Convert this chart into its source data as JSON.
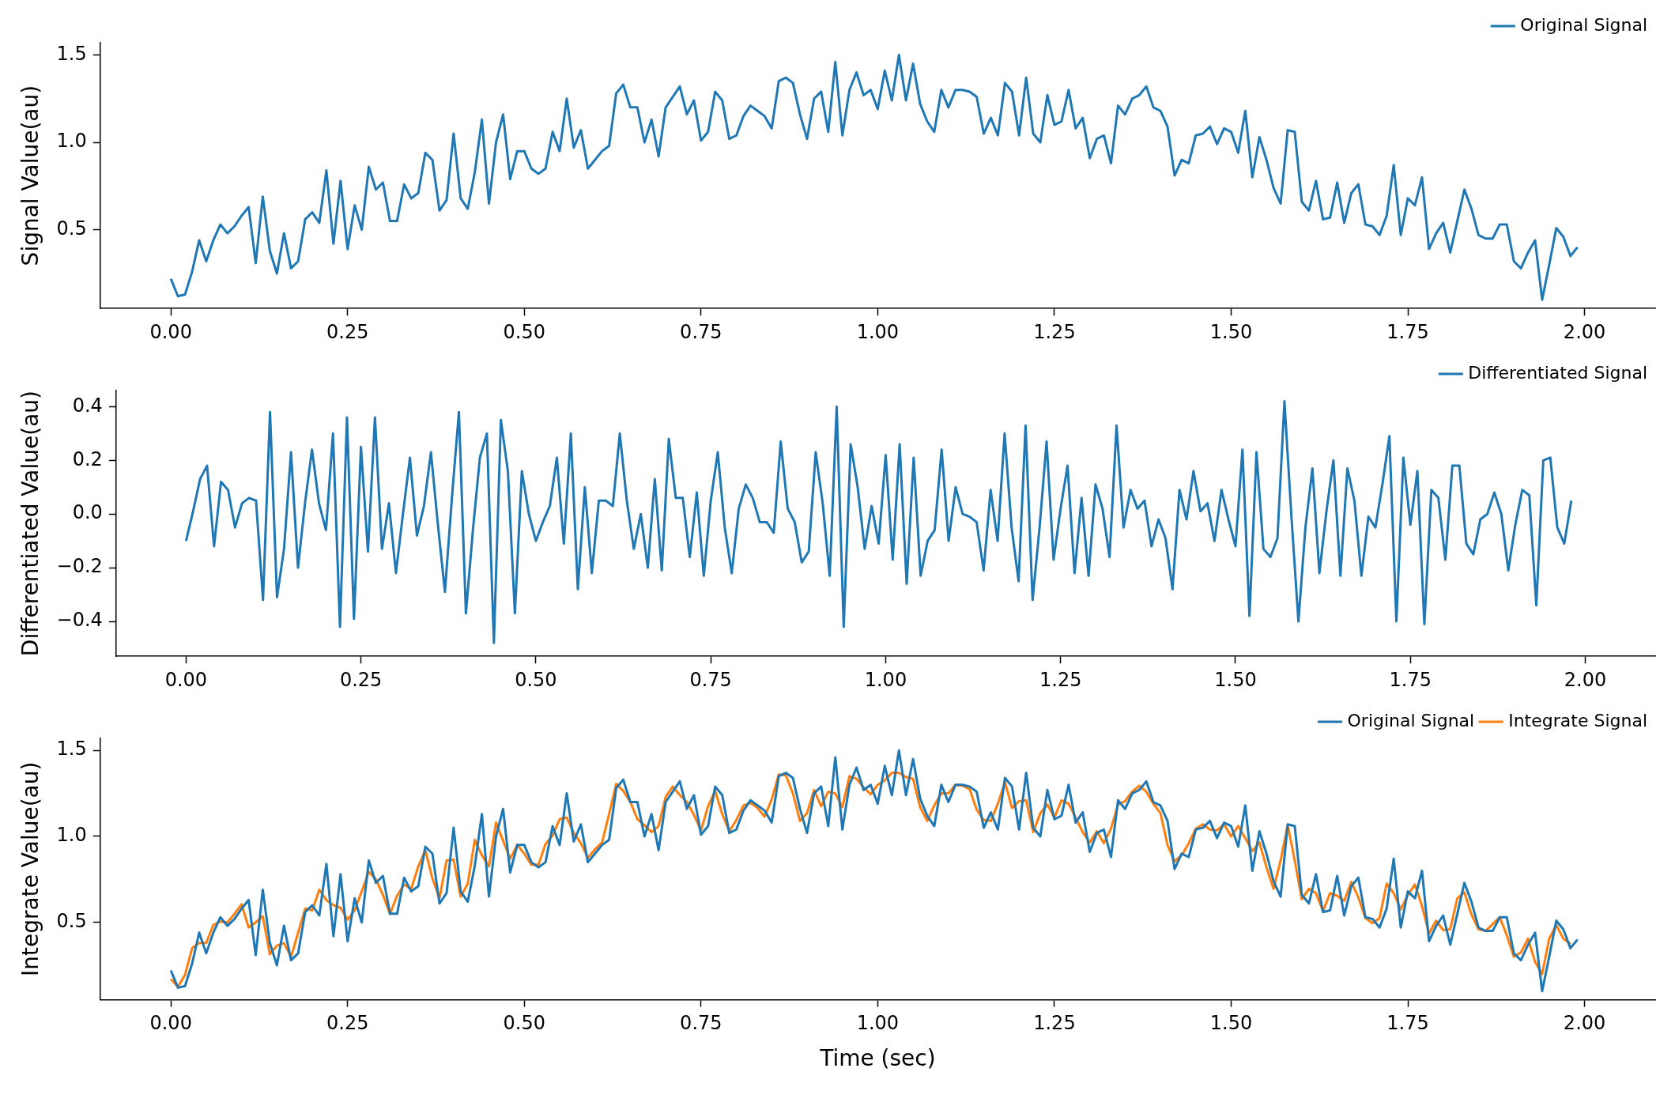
{
  "chart_data": [
    {
      "type": "line",
      "ylabel": "Signal Value(au)",
      "xlim": [
        -0.1,
        2.1
      ],
      "ylim": [
        0.05,
        1.57
      ],
      "xticks": [
        {
          "value": 0,
          "label": "0.00"
        },
        {
          "value": 0.25,
          "label": "0.25"
        },
        {
          "value": 0.5,
          "label": "0.50"
        },
        {
          "value": 0.75,
          "label": "0.75"
        },
        {
          "value": 1,
          "label": "1.00"
        },
        {
          "value": 1.25,
          "label": "1.25"
        },
        {
          "value": 1.5,
          "label": "1.50"
        },
        {
          "value": 1.75,
          "label": "1.75"
        },
        {
          "value": 2,
          "label": "2.00"
        }
      ],
      "yticks": [
        {
          "value": 0.5,
          "label": "0.5"
        },
        {
          "value": 1,
          "label": "1.0"
        },
        {
          "value": 1.5,
          "label": "1.5"
        }
      ],
      "legend": "top right",
      "grid": false,
      "marker": "none",
      "line_style": "solid",
      "x": [
        0,
        0.01,
        0.02,
        0.03,
        0.04,
        0.05,
        0.06,
        0.07,
        0.08,
        0.09,
        0.1,
        0.11,
        0.12,
        0.13,
        0.14,
        0.15,
        0.16,
        0.17,
        0.18,
        0.19,
        0.2,
        0.21,
        0.22,
        0.23,
        0.24,
        0.25,
        0.26,
        0.27,
        0.28,
        0.29,
        0.3,
        0.31,
        0.32,
        0.33,
        0.34,
        0.35,
        0.36,
        0.37,
        0.38,
        0.39,
        0.4,
        0.41,
        0.42,
        0.43,
        0.44,
        0.45,
        0.46,
        0.47,
        0.48,
        0.49,
        0.5,
        0.51,
        0.52,
        0.53,
        0.54,
        0.55,
        0.56,
        0.57,
        0.58,
        0.59,
        0.6,
        0.61,
        0.62,
        0.63,
        0.64,
        0.65,
        0.66,
        0.67,
        0.68,
        0.69,
        0.7,
        0.71,
        0.72,
        0.73,
        0.74,
        0.75,
        0.76,
        0.77,
        0.78,
        0.79,
        0.8,
        0.81,
        0.82,
        0.83,
        0.84,
        0.85,
        0.86,
        0.87,
        0.88,
        0.89,
        0.9,
        0.91,
        0.92,
        0.93,
        0.94,
        0.95,
        0.96,
        0.97,
        0.98,
        0.99,
        1,
        1.01,
        1.02,
        1.03,
        1.04,
        1.05,
        1.06,
        1.07,
        1.08,
        1.09,
        1.1,
        1.11,
        1.12,
        1.13,
        1.14,
        1.15,
        1.16,
        1.17,
        1.18,
        1.19,
        1.2,
        1.21,
        1.22,
        1.23,
        1.24,
        1.25,
        1.26,
        1.27,
        1.28,
        1.29,
        1.3,
        1.31,
        1.32,
        1.33,
        1.34,
        1.35,
        1.36,
        1.37,
        1.38,
        1.39,
        1.4,
        1.41,
        1.42,
        1.43,
        1.44,
        1.45,
        1.46,
        1.47,
        1.48,
        1.49,
        1.5,
        1.51,
        1.52,
        1.53,
        1.54,
        1.55,
        1.56,
        1.57,
        1.58,
        1.59,
        1.6,
        1.61,
        1.62,
        1.63,
        1.64,
        1.65,
        1.66,
        1.67,
        1.68,
        1.69,
        1.7,
        1.71,
        1.72,
        1.73,
        1.74,
        1.75,
        1.76,
        1.77,
        1.78,
        1.79,
        1.8,
        1.81,
        1.82,
        1.83,
        1.84,
        1.85,
        1.86,
        1.87,
        1.88,
        1.89,
        1.9,
        1.91,
        1.92,
        1.93,
        1.94,
        1.95,
        1.96,
        1.97,
        1.98,
        1.99
      ],
      "series": [
        {
          "name": "Original Signal",
          "color": "#1f77b4",
          "values": [
            0.22,
            0.12,
            0.13,
            0.26,
            0.44,
            0.32,
            0.44,
            0.53,
            0.48,
            0.52,
            0.58,
            0.63,
            0.31,
            0.69,
            0.38,
            0.25,
            0.48,
            0.28,
            0.32,
            0.56,
            0.6,
            0.54,
            0.84,
            0.42,
            0.78,
            0.39,
            0.64,
            0.5,
            0.86,
            0.73,
            0.77,
            0.55,
            0.55,
            0.76,
            0.68,
            0.71,
            0.94,
            0.9,
            0.61,
            0.67,
            1.05,
            0.68,
            0.62,
            0.83,
            1.13,
            0.65,
            1.0,
            1.16,
            0.79,
            0.95,
            0.95,
            0.85,
            0.82,
            0.85,
            1.06,
            0.95,
            1.25,
            0.97,
            1.07,
            0.85,
            0.9,
            0.95,
            0.98,
            1.28,
            1.33,
            1.2,
            1.2,
            1.0,
            1.13,
            0.92,
            1.2,
            1.26,
            1.32,
            1.16,
            1.24,
            1.01,
            1.06,
            1.29,
            1.24,
            1.02,
            1.04,
            1.15,
            1.21,
            1.18,
            1.15,
            1.08,
            1.35,
            1.37,
            1.34,
            1.16,
            1.02,
            1.25,
            1.29,
            1.06,
            1.46,
            1.04,
            1.3,
            1.4,
            1.27,
            1.3,
            1.19,
            1.41,
            1.24,
            1.5,
            1.24,
            1.45,
            1.22,
            1.12,
            1.06,
            1.3,
            1.2,
            1.3,
            1.3,
            1.29,
            1.26,
            1.05,
            1.14,
            1.04,
            1.34,
            1.29,
            1.04,
            1.37,
            1.05,
            1.0,
            1.27,
            1.1,
            1.12,
            1.3,
            1.08,
            1.14,
            0.91,
            1.02,
            1.04,
            0.88,
            1.21,
            1.16,
            1.25,
            1.27,
            1.32,
            1.2,
            1.18,
            1.09,
            0.81,
            0.9,
            0.88,
            1.04,
            1.05,
            1.09,
            0.99,
            1.08,
            1.06,
            0.94,
            1.18,
            0.8,
            1.03,
            0.9,
            0.74,
            0.65,
            1.07,
            1.06,
            0.66,
            0.61,
            0.78,
            0.56,
            0.57,
            0.77,
            0.54,
            0.71,
            0.76,
            0.53,
            0.52,
            0.47,
            0.58,
            0.87,
            0.47,
            0.68,
            0.64,
            0.8,
            0.39,
            0.48,
            0.54,
            0.37,
            0.55,
            0.73,
            0.62,
            0.47,
            0.45,
            0.45,
            0.53,
            0.53,
            0.32,
            0.28,
            0.37,
            0.44,
            0.1,
            0.3,
            0.51,
            0.46,
            0.35,
            0.4
          ]
        }
      ]
    },
    {
      "type": "line",
      "ylabel": "Differentiated Value(au)",
      "xlim": [
        -0.1,
        2.1
      ],
      "ylim": [
        -0.53,
        0.46
      ],
      "xticks": [
        {
          "value": 0,
          "label": "0.00"
        },
        {
          "value": 0.25,
          "label": "0.25"
        },
        {
          "value": 0.5,
          "label": "0.50"
        },
        {
          "value": 0.75,
          "label": "0.75"
        },
        {
          "value": 1,
          "label": "1.00"
        },
        {
          "value": 1.25,
          "label": "1.25"
        },
        {
          "value": 1.5,
          "label": "1.50"
        },
        {
          "value": 1.75,
          "label": "1.75"
        },
        {
          "value": 2,
          "label": "2.00"
        }
      ],
      "yticks": [
        {
          "value": -0.4,
          "label": "−0.4"
        },
        {
          "value": -0.2,
          "label": "−0.2"
        },
        {
          "value": 0,
          "label": "0.0"
        },
        {
          "value": 0.2,
          "label": "0.2"
        },
        {
          "value": 0.4,
          "label": "0.4"
        }
      ],
      "legend": "top right",
      "grid": false,
      "marker": "none",
      "line_style": "solid",
      "x": [
        0,
        0.01,
        0.02,
        0.03,
        0.04,
        0.05,
        0.06,
        0.07,
        0.08,
        0.09,
        0.1,
        0.11,
        0.12,
        0.13,
        0.14,
        0.15,
        0.16,
        0.17,
        0.18,
        0.19,
        0.2,
        0.21,
        0.22,
        0.23,
        0.24,
        0.25,
        0.26,
        0.27,
        0.28,
        0.29,
        0.3,
        0.31,
        0.32,
        0.33,
        0.34,
        0.35,
        0.36,
        0.37,
        0.38,
        0.39,
        0.4,
        0.41,
        0.42,
        0.43,
        0.44,
        0.45,
        0.46,
        0.47,
        0.48,
        0.49,
        0.5,
        0.51,
        0.52,
        0.53,
        0.54,
        0.55,
        0.56,
        0.57,
        0.58,
        0.59,
        0.6,
        0.61,
        0.62,
        0.63,
        0.64,
        0.65,
        0.66,
        0.67,
        0.68,
        0.69,
        0.7,
        0.71,
        0.72,
        0.73,
        0.74,
        0.75,
        0.76,
        0.77,
        0.78,
        0.79,
        0.8,
        0.81,
        0.82,
        0.83,
        0.84,
        0.85,
        0.86,
        0.87,
        0.88,
        0.89,
        0.9,
        0.91,
        0.92,
        0.93,
        0.94,
        0.95,
        0.96,
        0.97,
        0.98,
        0.99,
        1,
        1.01,
        1.02,
        1.03,
        1.04,
        1.05,
        1.06,
        1.07,
        1.08,
        1.09,
        1.1,
        1.11,
        1.12,
        1.13,
        1.14,
        1.15,
        1.16,
        1.17,
        1.18,
        1.19,
        1.2,
        1.21,
        1.22,
        1.23,
        1.24,
        1.25,
        1.26,
        1.27,
        1.28,
        1.29,
        1.3,
        1.31,
        1.32,
        1.33,
        1.34,
        1.35,
        1.36,
        1.37,
        1.38,
        1.39,
        1.4,
        1.41,
        1.42,
        1.43,
        1.44,
        1.45,
        1.46,
        1.47,
        1.48,
        1.49,
        1.5,
        1.51,
        1.52,
        1.53,
        1.54,
        1.55,
        1.56,
        1.57,
        1.58,
        1.59,
        1.6,
        1.61,
        1.62,
        1.63,
        1.64,
        1.65,
        1.66,
        1.67,
        1.68,
        1.69,
        1.7,
        1.71,
        1.72,
        1.73,
        1.74,
        1.75,
        1.76,
        1.77,
        1.78,
        1.79,
        1.8,
        1.81,
        1.82,
        1.83,
        1.84,
        1.85,
        1.86,
        1.87,
        1.88,
        1.89,
        1.9,
        1.91,
        1.92,
        1.93,
        1.94,
        1.95,
        1.96,
        1.97,
        1.98
      ],
      "series": [
        {
          "name": "Differentiated Signal",
          "color": "#1f77b4",
          "values": [
            -0.1,
            0.01,
            0.13,
            0.18,
            -0.12,
            0.12,
            0.09,
            -0.05,
            0.04,
            0.06,
            0.05,
            -0.32,
            0.38,
            -0.31,
            -0.13,
            0.23,
            -0.2,
            0.04,
            0.24,
            0.04,
            -0.06,
            0.3,
            -0.42,
            0.36,
            -0.39,
            0.25,
            -0.14,
            0.36,
            -0.13,
            0.04,
            -0.22,
            0,
            0.21,
            -0.08,
            0.03,
            0.23,
            -0.04,
            -0.29,
            0.06,
            0.38,
            -0.37,
            -0.06,
            0.21,
            0.3,
            -0.48,
            0.35,
            0.16,
            -0.37,
            0.16,
            0,
            -0.1,
            -0.03,
            0.03,
            0.21,
            -0.11,
            0.3,
            -0.28,
            0.1,
            -0.22,
            0.05,
            0.05,
            0.03,
            0.3,
            0.05,
            -0.13,
            0,
            -0.2,
            0.13,
            -0.21,
            0.28,
            0.06,
            0.06,
            -0.16,
            0.08,
            -0.23,
            0.05,
            0.23,
            -0.05,
            -0.22,
            0.02,
            0.11,
            0.06,
            -0.03,
            -0.03,
            -0.07,
            0.27,
            0.02,
            -0.03,
            -0.18,
            -0.14,
            0.23,
            0.04,
            -0.23,
            0.4,
            -0.42,
            0.26,
            0.1,
            -0.13,
            0.03,
            -0.11,
            0.22,
            -0.17,
            0.26,
            -0.26,
            0.21,
            -0.23,
            -0.1,
            -0.06,
            0.24,
            -0.1,
            0.1,
            0,
            -0.01,
            -0.03,
            -0.21,
            0.09,
            -0.1,
            0.3,
            -0.05,
            -0.25,
            0.33,
            -0.32,
            -0.05,
            0.27,
            -0.17,
            0.02,
            0.18,
            -0.22,
            0.06,
            -0.23,
            0.11,
            0.02,
            -0.16,
            0.33,
            -0.05,
            0.09,
            0.02,
            0.05,
            -0.12,
            -0.02,
            -0.09,
            -0.28,
            0.09,
            -0.02,
            0.16,
            0.01,
            0.04,
            -0.1,
            0.09,
            -0.02,
            -0.12,
            0.24,
            -0.38,
            0.23,
            -0.13,
            -0.16,
            -0.09,
            0.42,
            -0.01,
            -0.4,
            -0.05,
            0.17,
            -0.22,
            0.01,
            0.2,
            -0.23,
            0.17,
            0.05,
            -0.23,
            -0.01,
            -0.05,
            0.11,
            0.29,
            -0.4,
            0.21,
            -0.04,
            0.16,
            -0.41,
            0.09,
            0.06,
            -0.17,
            0.18,
            0.18,
            -0.11,
            -0.15,
            -0.02,
            0,
            0.08,
            0,
            -0.21,
            -0.04,
            0.09,
            0.07,
            -0.34,
            0.2,
            0.21,
            -0.05,
            -0.11,
            0.05
          ]
        }
      ]
    },
    {
      "type": "line",
      "xlabel": "Time (sec)",
      "ylabel": "Integrate Value(au)",
      "xlim": [
        -0.1,
        2.1
      ],
      "ylim": [
        0.05,
        1.57
      ],
      "xticks": [
        {
          "value": 0,
          "label": "0.00"
        },
        {
          "value": 0.25,
          "label": "0.25"
        },
        {
          "value": 0.5,
          "label": "0.50"
        },
        {
          "value": 0.75,
          "label": "0.75"
        },
        {
          "value": 1,
          "label": "1.00"
        },
        {
          "value": 1.25,
          "label": "1.25"
        },
        {
          "value": 1.5,
          "label": "1.50"
        },
        {
          "value": 1.75,
          "label": "1.75"
        },
        {
          "value": 2,
          "label": "2.00"
        }
      ],
      "yticks": [
        {
          "value": 0.5,
          "label": "0.5"
        },
        {
          "value": 1,
          "label": "1.0"
        },
        {
          "value": 1.5,
          "label": "1.5"
        }
      ],
      "legend": "top right",
      "grid": false,
      "marker": "none",
      "line_style": "solid",
      "x": [
        0,
        0.01,
        0.02,
        0.03,
        0.04,
        0.05,
        0.06,
        0.07,
        0.08,
        0.09,
        0.1,
        0.11,
        0.12,
        0.13,
        0.14,
        0.15,
        0.16,
        0.17,
        0.18,
        0.19,
        0.2,
        0.21,
        0.22,
        0.23,
        0.24,
        0.25,
        0.26,
        0.27,
        0.28,
        0.29,
        0.3,
        0.31,
        0.32,
        0.33,
        0.34,
        0.35,
        0.36,
        0.37,
        0.38,
        0.39,
        0.4,
        0.41,
        0.42,
        0.43,
        0.44,
        0.45,
        0.46,
        0.47,
        0.48,
        0.49,
        0.5,
        0.51,
        0.52,
        0.53,
        0.54,
        0.55,
        0.56,
        0.57,
        0.58,
        0.59,
        0.6,
        0.61,
        0.62,
        0.63,
        0.64,
        0.65,
        0.66,
        0.67,
        0.68,
        0.69,
        0.7,
        0.71,
        0.72,
        0.73,
        0.74,
        0.75,
        0.76,
        0.77,
        0.78,
        0.79,
        0.8,
        0.81,
        0.82,
        0.83,
        0.84,
        0.85,
        0.86,
        0.87,
        0.88,
        0.89,
        0.9,
        0.91,
        0.92,
        0.93,
        0.94,
        0.95,
        0.96,
        0.97,
        0.98,
        0.99,
        1,
        1.01,
        1.02,
        1.03,
        1.04,
        1.05,
        1.06,
        1.07,
        1.08,
        1.09,
        1.1,
        1.11,
        1.12,
        1.13,
        1.14,
        1.15,
        1.16,
        1.17,
        1.18,
        1.19,
        1.2,
        1.21,
        1.22,
        1.23,
        1.24,
        1.25,
        1.26,
        1.27,
        1.28,
        1.29,
        1.3,
        1.31,
        1.32,
        1.33,
        1.34,
        1.35,
        1.36,
        1.37,
        1.38,
        1.39,
        1.4,
        1.41,
        1.42,
        1.43,
        1.44,
        1.45,
        1.46,
        1.47,
        1.48,
        1.49,
        1.5,
        1.51,
        1.52,
        1.53,
        1.54,
        1.55,
        1.56,
        1.57,
        1.58,
        1.59,
        1.6,
        1.61,
        1.62,
        1.63,
        1.64,
        1.65,
        1.66,
        1.67,
        1.68,
        1.69,
        1.7,
        1.71,
        1.72,
        1.73,
        1.74,
        1.75,
        1.76,
        1.77,
        1.78,
        1.79,
        1.8,
        1.81,
        1.82,
        1.83,
        1.84,
        1.85,
        1.86,
        1.87,
        1.88,
        1.89,
        1.9,
        1.91,
        1.92,
        1.93,
        1.94,
        1.95,
        1.96,
        1.97,
        1.98,
        1.99
      ],
      "series": [
        {
          "name": "Original Signal",
          "color": "#1f77b4",
          "values": [
            0.22,
            0.12,
            0.13,
            0.26,
            0.44,
            0.32,
            0.44,
            0.53,
            0.48,
            0.52,
            0.58,
            0.63,
            0.31,
            0.69,
            0.38,
            0.25,
            0.48,
            0.28,
            0.32,
            0.56,
            0.6,
            0.54,
            0.84,
            0.42,
            0.78,
            0.39,
            0.64,
            0.5,
            0.86,
            0.73,
            0.77,
            0.55,
            0.55,
            0.76,
            0.68,
            0.71,
            0.94,
            0.9,
            0.61,
            0.67,
            1.05,
            0.68,
            0.62,
            0.83,
            1.13,
            0.65,
            1.0,
            1.16,
            0.79,
            0.95,
            0.95,
            0.85,
            0.82,
            0.85,
            1.06,
            0.95,
            1.25,
            0.97,
            1.07,
            0.85,
            0.9,
            0.95,
            0.98,
            1.28,
            1.33,
            1.2,
            1.2,
            1.0,
            1.13,
            0.92,
            1.2,
            1.26,
            1.32,
            1.16,
            1.24,
            1.01,
            1.06,
            1.29,
            1.24,
            1.02,
            1.04,
            1.15,
            1.21,
            1.18,
            1.15,
            1.08,
            1.35,
            1.37,
            1.34,
            1.16,
            1.02,
            1.25,
            1.29,
            1.06,
            1.46,
            1.04,
            1.3,
            1.4,
            1.27,
            1.3,
            1.19,
            1.41,
            1.24,
            1.5,
            1.24,
            1.45,
            1.22,
            1.12,
            1.06,
            1.3,
            1.2,
            1.3,
            1.3,
            1.29,
            1.26,
            1.05,
            1.14,
            1.04,
            1.34,
            1.29,
            1.04,
            1.37,
            1.05,
            1.0,
            1.27,
            1.1,
            1.12,
            1.3,
            1.08,
            1.14,
            0.91,
            1.02,
            1.04,
            0.88,
            1.21,
            1.16,
            1.25,
            1.27,
            1.32,
            1.2,
            1.18,
            1.09,
            0.81,
            0.9,
            0.88,
            1.04,
            1.05,
            1.09,
            0.99,
            1.08,
            1.06,
            0.94,
            1.18,
            0.8,
            1.03,
            0.9,
            0.74,
            0.65,
            1.07,
            1.06,
            0.66,
            0.61,
            0.78,
            0.56,
            0.57,
            0.77,
            0.54,
            0.71,
            0.76,
            0.53,
            0.52,
            0.47,
            0.58,
            0.87,
            0.47,
            0.68,
            0.64,
            0.8,
            0.39,
            0.48,
            0.54,
            0.37,
            0.55,
            0.73,
            0.62,
            0.47,
            0.45,
            0.45,
            0.53,
            0.53,
            0.32,
            0.28,
            0.37,
            0.44,
            0.1,
            0.3,
            0.51,
            0.46,
            0.35,
            0.4
          ]
        },
        {
          "name": "Integrate Signal",
          "color": "#ff7f0e",
          "values": [
            0.17,
            0.125,
            0.195,
            0.35,
            0.38,
            0.38,
            0.485,
            0.505,
            0.5,
            0.55,
            0.605,
            0.47,
            0.5,
            0.535,
            0.315,
            0.365,
            0.38,
            0.3,
            0.44,
            0.58,
            0.57,
            0.69,
            0.63,
            0.6,
            0.585,
            0.515,
            0.57,
            0.68,
            0.795,
            0.75,
            0.66,
            0.55,
            0.655,
            0.72,
            0.695,
            0.825,
            0.92,
            0.755,
            0.64,
            0.86,
            0.865,
            0.65,
            0.725,
            0.98,
            0.89,
            0.825,
            1.08,
            0.975,
            0.87,
            0.95,
            0.9,
            0.835,
            0.835,
            0.955,
            1.005,
            1.1,
            1.11,
            1.02,
            0.96,
            0.875,
            0.925,
            0.965,
            1.13,
            1.305,
            1.265,
            1.2,
            1.1,
            1.065,
            1.025,
            1.06,
            1.23,
            1.29,
            1.24,
            1.2,
            1.125,
            1.035,
            1.175,
            1.265,
            1.13,
            1.03,
            1.095,
            1.18,
            1.195,
            1.165,
            1.115,
            1.215,
            1.36,
            1.355,
            1.25,
            1.09,
            1.135,
            1.27,
            1.175,
            1.26,
            1.25,
            1.17,
            1.35,
            1.335,
            1.285,
            1.245,
            1.3,
            1.325,
            1.37,
            1.37,
            1.345,
            1.335,
            1.17,
            1.09,
            1.18,
            1.25,
            1.25,
            1.3,
            1.295,
            1.275,
            1.155,
            1.095,
            1.09,
            1.19,
            1.315,
            1.165,
            1.205,
            1.21,
            1.025,
            1.135,
            1.185,
            1.11,
            1.21,
            1.19,
            1.11,
            1.025,
            0.965,
            1.03,
            0.96,
            1.045,
            1.185,
            1.205,
            1.26,
            1.295,
            1.26,
            1.19,
            1.135,
            0.95,
            0.855,
            0.89,
            0.96,
            1.045,
            1.07,
            1.04,
            1.035,
            1.07,
            1.0,
            1.06,
            0.99,
            0.915,
            0.965,
            0.82,
            0.695,
            0.86,
            1.065,
            0.86,
            0.635,
            0.695,
            0.67,
            0.565,
            0.67,
            0.655,
            0.625,
            0.735,
            0.645,
            0.525,
            0.495,
            0.525,
            0.725,
            0.67,
            0.575,
            0.66,
            0.72,
            0.595,
            0.435,
            0.51,
            0.455,
            0.46,
            0.64,
            0.675,
            0.545,
            0.46,
            0.45,
            0.49,
            0.53,
            0.425,
            0.3,
            0.325,
            0.405,
            0.27,
            0.2,
            0.405,
            0.485,
            0.405,
            0.375,
            null
          ]
        }
      ]
    }
  ]
}
